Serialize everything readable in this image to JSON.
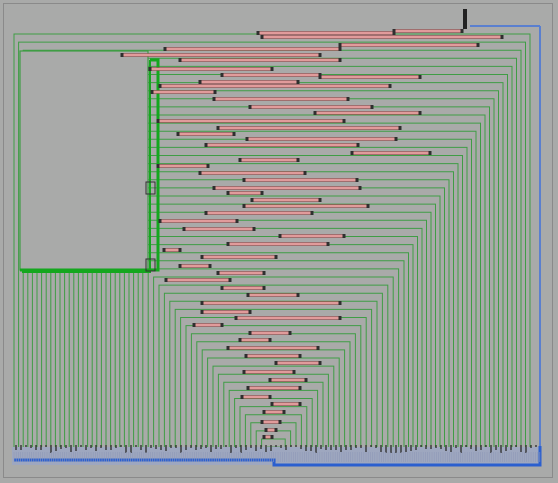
{
  "view": {
    "title": "",
    "background": "#a9aaa9"
  },
  "colors": {
    "wire": "#3f9d45",
    "wire_bold": "#14a71e",
    "bar_fill": "#e19b9b",
    "bar_edge": "#7c3a3a",
    "node": "#2f2f2f",
    "box_fill": "#a9aaa9",
    "box_edge": "#2f2f2f",
    "bottom_strip": "#9ea7bf",
    "bottom_line": "#2b5fcf",
    "bottom_tick": "#333333"
  },
  "icons": {
    "top_marker": "vertical-bar-marker-icon",
    "node": "square-node-icon",
    "junction": "junction-box-icon"
  },
  "diagram": {
    "kind": "nested-wire-tree",
    "element_count": 52,
    "highlighted_branch_count": 2
  }
}
